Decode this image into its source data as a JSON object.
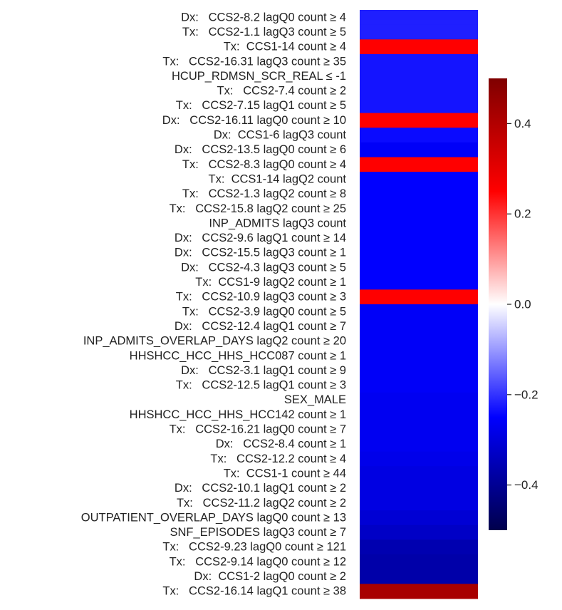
{
  "chart_data": {
    "type": "heatmap",
    "title": "",
    "colormap": "seismic",
    "vmin": -0.5,
    "vmax": 0.5,
    "colorbar_ticks": [
      -0.4,
      -0.2,
      0.0,
      0.2,
      0.4
    ],
    "colorbar_tick_labels": [
      "−0.4",
      "−0.2",
      "0.0",
      "0.2",
      "0.4"
    ],
    "rows": [
      {
        "label": "Dx:   CCS2-8.2 lagQ0 count ≥ 4",
        "value": -0.22
      },
      {
        "label": "Tx:   CCS2-1.1 lagQ3 count ≥ 5",
        "value": -0.22
      },
      {
        "label": "Tx:  CCS1-14 count ≥ 4",
        "value": 0.25
      },
      {
        "label": "Tx:   CCS2-16.31 lagQ3 count ≥ 35",
        "value": -0.23
      },
      {
        "label": "HCUP_RDMSN_SCR_REAL ≤ -1",
        "value": -0.23
      },
      {
        "label": "Tx:   CCS2-7.4 count ≥ 2",
        "value": -0.23
      },
      {
        "label": "Tx:   CCS2-7.15 lagQ1 count ≥ 5",
        "value": -0.23
      },
      {
        "label": "Dx:   CCS2-16.11 lagQ0 count ≥ 10",
        "value": 0.25
      },
      {
        "label": "Dx:  CCS1-6 lagQ3 count",
        "value": -0.24
      },
      {
        "label": "Dx:   CCS2-13.5 lagQ0 count ≥ 6",
        "value": -0.26
      },
      {
        "label": "Tx:   CCS2-8.3 lagQ0 count ≥ 4",
        "value": 0.25
      },
      {
        "label": "Tx:  CCS1-14 lagQ2 count",
        "value": -0.25
      },
      {
        "label": "Tx:   CCS2-1.3 lagQ2 count ≥ 8",
        "value": -0.25
      },
      {
        "label": "Tx:   CCS2-15.8 lagQ2 count ≥ 25",
        "value": -0.25
      },
      {
        "label": "INP_ADMITS lagQ3 count",
        "value": -0.25
      },
      {
        "label": "Dx:   CCS2-9.6 lagQ1 count ≥ 14",
        "value": -0.25
      },
      {
        "label": "Dx:   CCS2-15.5 lagQ3 count ≥ 1",
        "value": -0.25
      },
      {
        "label": "Dx:   CCS2-4.3 lagQ3 count ≥ 5",
        "value": -0.25
      },
      {
        "label": "Tx:  CCS1-9 lagQ2 count ≥ 1",
        "value": -0.25
      },
      {
        "label": "Tx:   CCS2-10.9 lagQ3 count ≥ 3",
        "value": 0.25
      },
      {
        "label": "Tx:   CCS2-3.9 lagQ0 count ≥ 5",
        "value": -0.26
      },
      {
        "label": "Dx:   CCS2-12.4 lagQ1 count ≥ 7",
        "value": -0.26
      },
      {
        "label": "INP_ADMITS_OVERLAP_DAYS lagQ2 count ≥ 20",
        "value": -0.26
      },
      {
        "label": "HHSHCC_HCC_HHS_HCC087 count ≥ 1",
        "value": -0.26
      },
      {
        "label": "Dx:   CCS2-3.1 lagQ1 count ≥ 9",
        "value": -0.26
      },
      {
        "label": "Tx:   CCS2-12.5 lagQ1 count ≥ 3",
        "value": -0.26
      },
      {
        "label": "SEX_MALE",
        "value": -0.27
      },
      {
        "label": "HHSHCC_HCC_HHS_HCC142 count ≥ 1",
        "value": -0.27
      },
      {
        "label": "Tx:   CCS2-16.21 lagQ0 count ≥ 7",
        "value": -0.27
      },
      {
        "label": "Dx:   CCS2-8.4 count ≥ 1",
        "value": -0.27
      },
      {
        "label": "Tx:   CCS2-12.2 count ≥ 4",
        "value": -0.28
      },
      {
        "label": "Tx:  CCS1-1 count ≥ 44",
        "value": -0.29
      },
      {
        "label": "Dx:   CCS2-10.1 lagQ1 count ≥ 2",
        "value": -0.29
      },
      {
        "label": "Tx:   CCS2-11.2 lagQ2 count ≥ 2",
        "value": -0.29
      },
      {
        "label": "OUTPATIENT_OVERLAP_DAYS lagQ0 count ≥ 13",
        "value": -0.31
      },
      {
        "label": "SNF_EPISODES lagQ3 count ≥ 7",
        "value": -0.33
      },
      {
        "label": "Tx:   CCS2-9.23 lagQ0 count ≥ 121",
        "value": -0.36
      },
      {
        "label": "Tx:   CCS2-9.14 lagQ0 count ≥ 12",
        "value": -0.37
      },
      {
        "label": "Dx:  CCS1-2 lagQ0 count ≥ 2",
        "value": -0.37
      },
      {
        "label": "Tx:   CCS2-16.14 lagQ1 count ≥ 38",
        "value": 0.42
      }
    ]
  }
}
